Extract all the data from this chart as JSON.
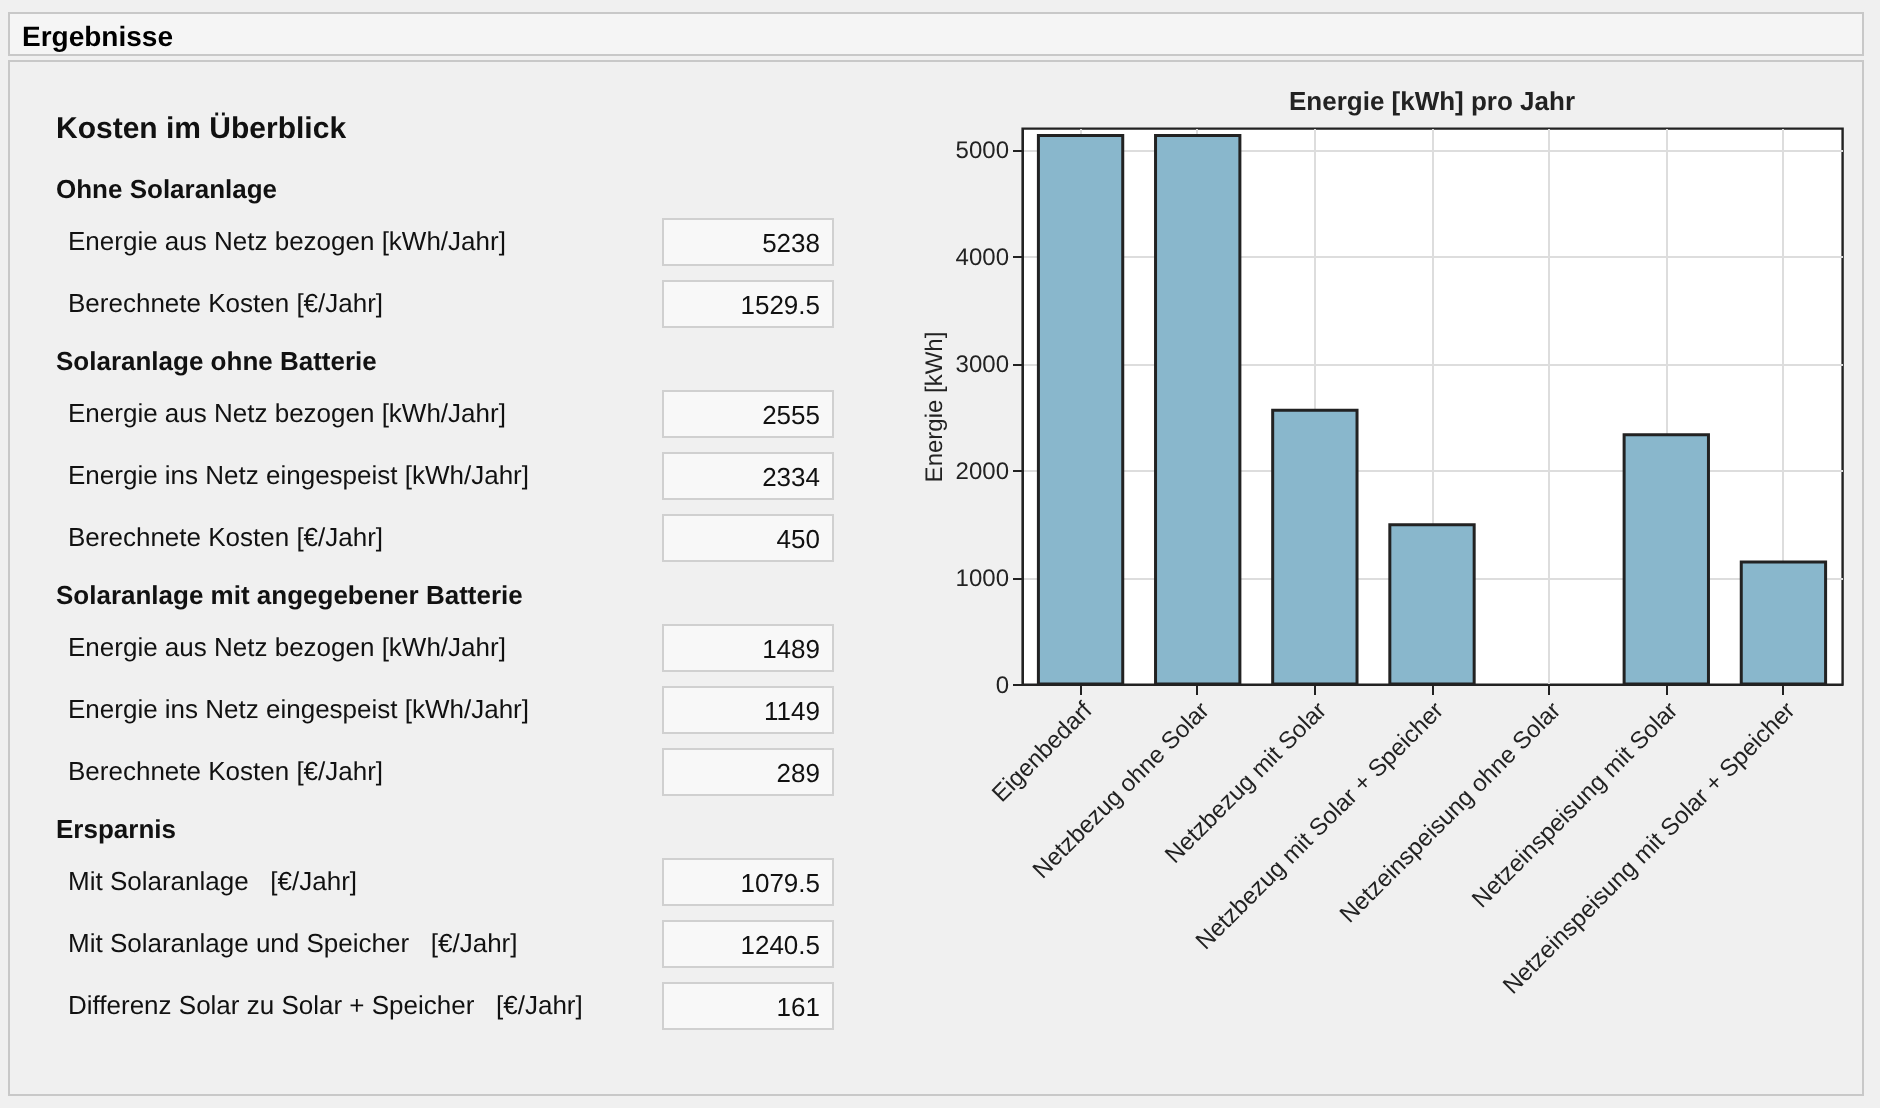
{
  "chart_data": [
    {
      "type": "other",
      "title": "Ergebnisse",
      "subtitle": "Kosten im Überblick",
      "categories": [
        "Ohne Solaranlage",
        "Energie aus Netz bezogen [kWh/Jahr]",
        "Berechnete Kosten [€/Jahr]",
        "Solaranlage ohne Batterie",
        "Energie aus Netz bezogen [kWh/Jahr]",
        "Energie ins Netz eingespeist [kWh/Jahr]",
        "Berechnete Kosten [€/Jahr]",
        "Solaranlage mit angegebener Batterie",
        "Energie aus Netz bezogen [kWh/Jahr]",
        "Energie ins Netz eingespeist [kWh/Jahr]",
        "Berechnete Kosten [€/Jahr]",
        "Ersparnis",
        "Mit Solaranlage   [€/Jahr]",
        "Mit Solaranlage und Speicher   [€/Jahr]",
        "Differenz Solar zu Solar + Speicher   [€/Jahr]"
      ],
      "values": [
        null,
        5238,
        1529.5,
        null,
        2555,
        2334,
        450,
        null,
        1489,
        1149,
        289,
        null,
        1079.5,
        1240.5,
        161
      ],
      "data_labels": true
    },
    {
      "type": "bar",
      "title": "Energie [kWh] pro Jahr",
      "ylabel": "Energie [kWh]",
      "categories": [
        "Eigenbedarf",
        "Netzbezug ohne Solar",
        "Netzbezug mit Solar",
        "Netzbezug mit Solar + Speicher",
        "Netzeinspeisung ohne Solar",
        "Netzeinspeisung mit Solar",
        "Netzeinspeisung mit Solar + Speicher"
      ],
      "values": [
        5130,
        5130,
        2560,
        1490,
        0,
        2330,
        1140
      ],
      "color": "#89b7cc",
      "ylim": [
        0,
        5200
      ],
      "yticks": [
        0,
        1000,
        2000,
        3000,
        4000,
        5000
      ],
      "grid": true
    }
  ]
}
